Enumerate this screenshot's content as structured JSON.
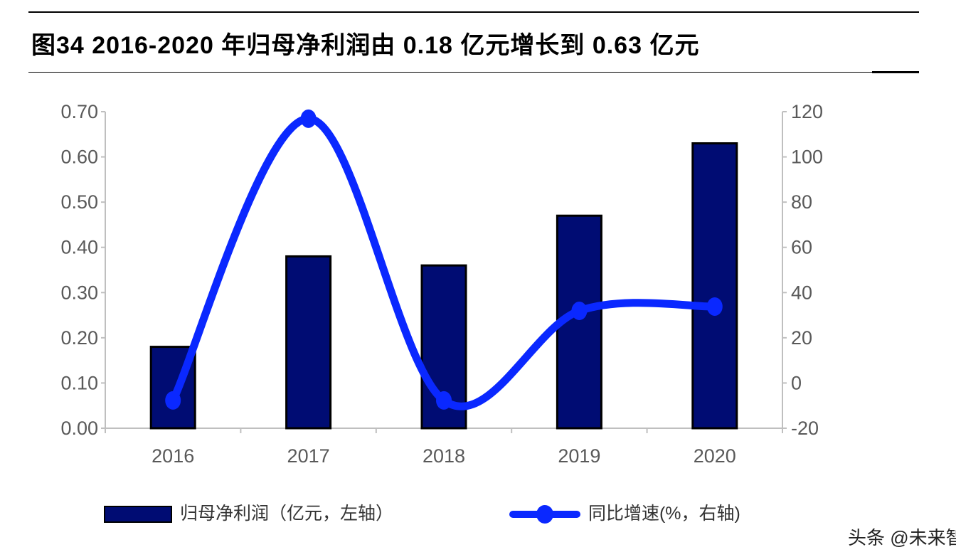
{
  "title": "图34 2016-2020 年归母净利润由 0.18 亿元增长到 0.63 亿元",
  "watermark": "头条 @未来智库",
  "chart_data": {
    "type": "bar+line",
    "categories": [
      "2016",
      "2017",
      "2018",
      "2019",
      "2020"
    ],
    "series": [
      {
        "name": "归母净利润（亿元，左轴）",
        "type": "bar",
        "axis": "left",
        "color": "#000c73",
        "values": [
          0.18,
          0.38,
          0.36,
          0.47,
          0.63
        ]
      },
      {
        "name": "同比增速(%，右轴)",
        "type": "line",
        "axis": "right",
        "color": "#0a28ff",
        "smooth": true,
        "values": [
          -7.7,
          116.9,
          -7.7,
          31.9,
          33.8
        ]
      }
    ],
    "yleft": {
      "ylim": [
        0,
        0.7
      ],
      "ticks": [
        "0.00",
        "0.10",
        "0.20",
        "0.30",
        "0.40",
        "0.50",
        "0.60",
        "0.70"
      ]
    },
    "yright": {
      "ylim": [
        -20,
        120
      ],
      "ticks": [
        "-20",
        "0",
        "20",
        "40",
        "60",
        "80",
        "100",
        "120"
      ]
    },
    "legend_position": "bottom",
    "grid": false
  }
}
